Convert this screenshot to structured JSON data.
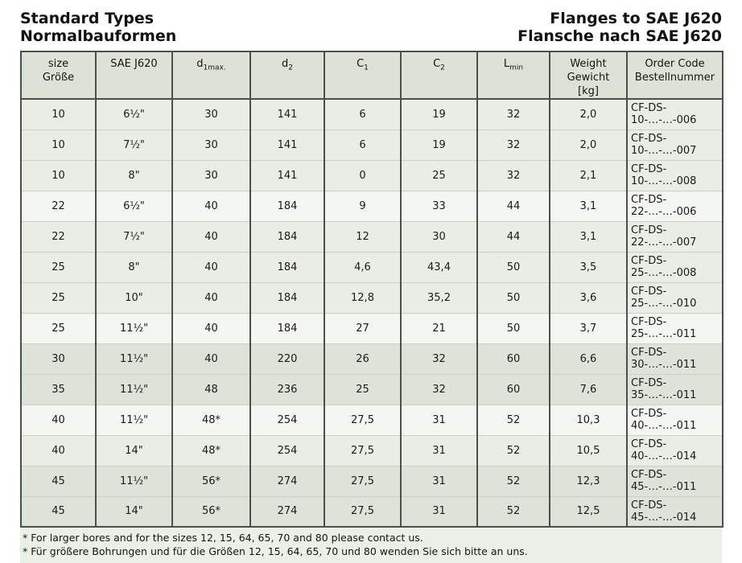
{
  "titles": {
    "left_line1": "Standard Types",
    "left_line2": "Normalbauformen",
    "right_line1": "Flanges to SAE J620",
    "right_line2": "Flansche nach SAE J620"
  },
  "table": {
    "header": {
      "size_line1": "size",
      "size_line2": "Größe",
      "sae": "SAE J620",
      "d1_base": "d",
      "d1_sub": "1max.",
      "d2_base": "d",
      "d2_sub": "2",
      "c1_base": "C",
      "c1_sub": "1",
      "c2_base": "C",
      "c2_sub": "2",
      "lmin_base": "L",
      "lmin_sub": "min",
      "weight_line1": "Weight",
      "weight_line2": "Gewicht",
      "weight_line3": "[kg]",
      "order_line1": "Order Code",
      "order_line2": "Bestellnummer"
    },
    "rows": [
      {
        "size": "10",
        "sae": "6½\"",
        "d1max": "30",
        "d2": "141",
        "c1": "6",
        "c2": "19",
        "lmin": "32",
        "weight": "2,0",
        "order": "CF-DS-10-…-…-006"
      },
      {
        "size": "10",
        "sae": "7½\"",
        "d1max": "30",
        "d2": "141",
        "c1": "6",
        "c2": "19",
        "lmin": "32",
        "weight": "2,0",
        "order": "CF-DS-10-…-…-007"
      },
      {
        "size": "10",
        "sae": "8\"",
        "d1max": "30",
        "d2": "141",
        "c1": "0",
        "c2": "25",
        "lmin": "32",
        "weight": "2,1",
        "order": "CF-DS-10-…-…-008"
      },
      {
        "size": "22",
        "sae": "6½\"",
        "d1max": "40",
        "d2": "184",
        "c1": "9",
        "c2": "33",
        "lmin": "44",
        "weight": "3,1",
        "order": "CF-DS-22-…-…-006"
      },
      {
        "size": "22",
        "sae": "7½\"",
        "d1max": "40",
        "d2": "184",
        "c1": "12",
        "c2": "30",
        "lmin": "44",
        "weight": "3,1",
        "order": "CF-DS-22-…-…-007"
      },
      {
        "size": "25",
        "sae": "8\"",
        "d1max": "40",
        "d2": "184",
        "c1": "4,6",
        "c2": "43,4",
        "lmin": "50",
        "weight": "3,5",
        "order": "CF-DS-25-…-…-008"
      },
      {
        "size": "25",
        "sae": "10\"",
        "d1max": "40",
        "d2": "184",
        "c1": "12,8",
        "c2": "35,2",
        "lmin": "50",
        "weight": "3,6",
        "order": "CF-DS-25-…-…-010"
      },
      {
        "size": "25",
        "sae": "11½\"",
        "d1max": "40",
        "d2": "184",
        "c1": "27",
        "c2": "21",
        "lmin": "50",
        "weight": "3,7",
        "order": "CF-DS-25-…-…-011"
      },
      {
        "size": "30",
        "sae": "11½\"",
        "d1max": "40",
        "d2": "220",
        "c1": "26",
        "c2": "32",
        "lmin": "60",
        "weight": "6,6",
        "order": "CF-DS-30-…-…-011"
      },
      {
        "size": "35",
        "sae": "11½\"",
        "d1max": "48",
        "d2": "236",
        "c1": "25",
        "c2": "32",
        "lmin": "60",
        "weight": "7,6",
        "order": "CF-DS-35-…-…-011"
      },
      {
        "size": "40",
        "sae": "11½\"",
        "d1max": "48*",
        "d2": "254",
        "c1": "27,5",
        "c2": "31",
        "lmin": "52",
        "weight": "10,3",
        "order": "CF-DS-40-…-…-011"
      },
      {
        "size": "40",
        "sae": "14\"",
        "d1max": "48*",
        "d2": "254",
        "c1": "27,5",
        "c2": "31",
        "lmin": "52",
        "weight": "10,5",
        "order": "CF-DS-40-…-…-014"
      },
      {
        "size": "45",
        "sae": "11½\"",
        "d1max": "56*",
        "d2": "274",
        "c1": "27,5",
        "c2": "31",
        "lmin": "52",
        "weight": "12,3",
        "order": "CF-DS-45-…-…-011"
      },
      {
        "size": "45",
        "sae": "14\"",
        "d1max": "56*",
        "d2": "274",
        "c1": "27,5",
        "c2": "31",
        "lmin": "52",
        "weight": "12,5",
        "order": "CF-DS-45-…-…-014"
      }
    ]
  },
  "footnotes": {
    "line_en": "* For larger bores and for the sizes 12, 15, 64, 65, 70 and 80 please contact us.",
    "line_de": "* Für größere Bohrungen und für die Größen 12, 15, 64, 65, 70 und 80 wenden Sie sich bitte an uns."
  },
  "colors": {
    "header_bg": "#dde2d6",
    "row_medium": "#e9ede5",
    "row_light": "#f4f6f1",
    "row_dark": "#dde3d8",
    "border": "#4a4f49",
    "footnote_bg": "#eaefe7"
  }
}
